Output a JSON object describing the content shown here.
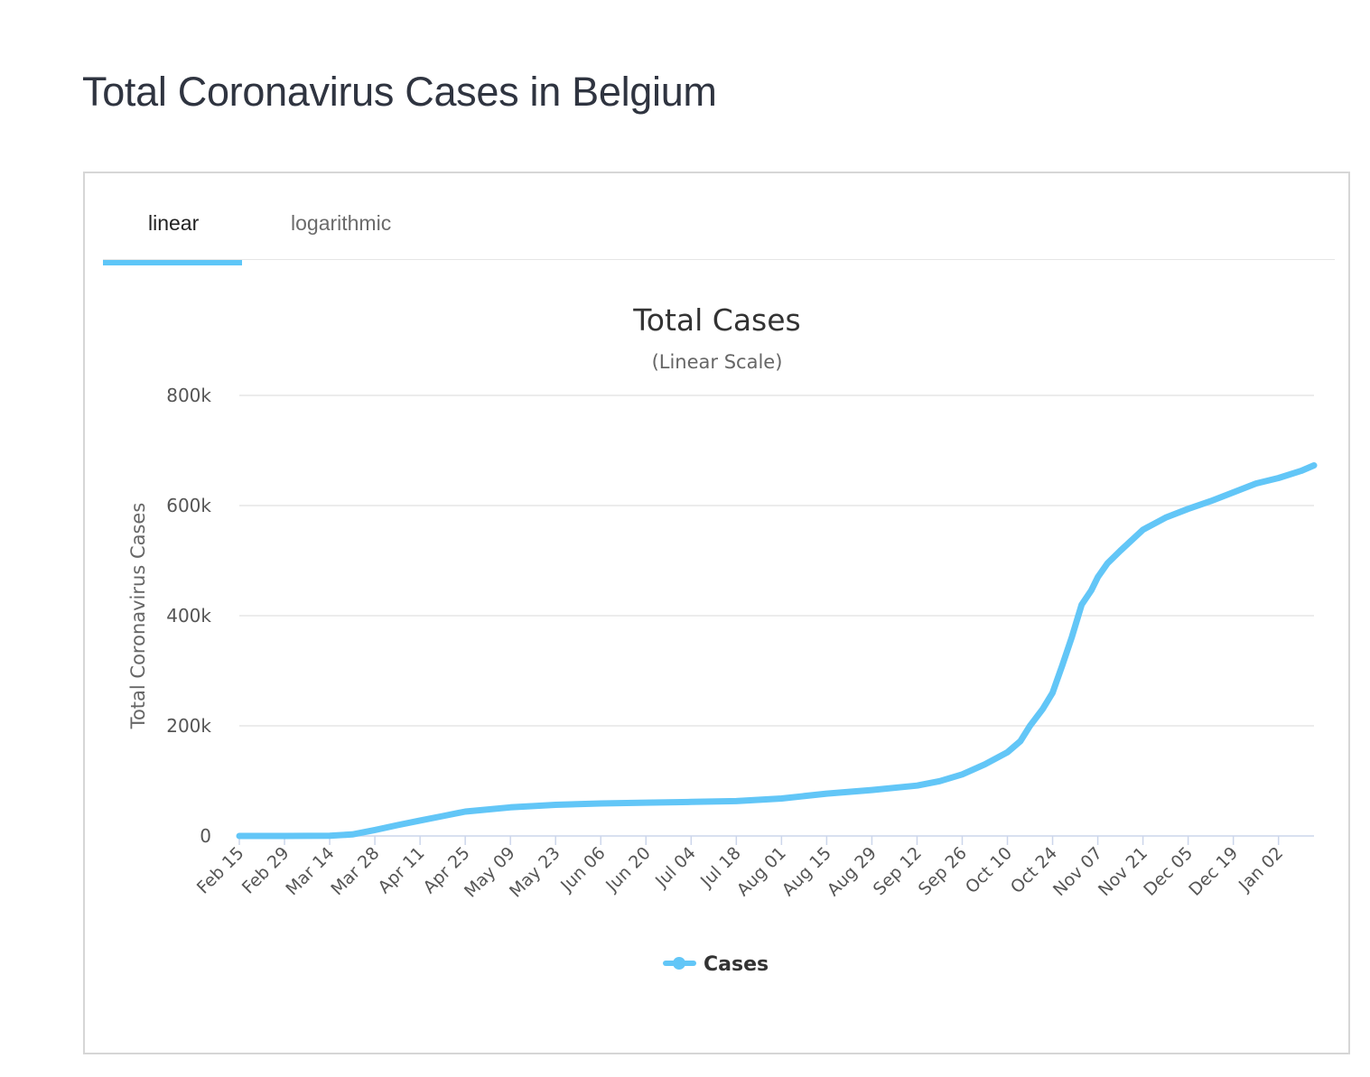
{
  "page": {
    "title": "Total Coronavirus Cases in Belgium"
  },
  "tabs": [
    {
      "label": "linear",
      "active": true
    },
    {
      "label": "logarithmic",
      "active": false
    }
  ],
  "colors": {
    "series": "#62c6f7",
    "accent": "#5ec6f8",
    "grid": "#e6e6e6",
    "title": "#2f3440"
  },
  "chart_data": {
    "type": "line",
    "title": "Total Cases",
    "subtitle": "(Linear Scale)",
    "xlabel": "",
    "ylabel": "Total Coronavirus Cases",
    "ylim": [
      0,
      800000
    ],
    "yticks": [
      0,
      200000,
      400000,
      600000,
      800000
    ],
    "ytick_labels": [
      "0",
      "200k",
      "400k",
      "600k",
      "800k"
    ],
    "xticks": [
      "Feb 15",
      "Feb 29",
      "Mar 14",
      "Mar 28",
      "Apr 11",
      "Apr 25",
      "May 09",
      "May 23",
      "Jun 06",
      "Jun 20",
      "Jul 04",
      "Jul 18",
      "Aug 01",
      "Aug 15",
      "Aug 29",
      "Sep 12",
      "Sep 26",
      "Oct 10",
      "Oct 24",
      "Nov 07",
      "Nov 21",
      "Dec 05",
      "Dec 19",
      "Jan 02"
    ],
    "grid": true,
    "legend": "bottom-center",
    "series": [
      {
        "name": "Cases",
        "x": [
          "Feb 15",
          "Feb 29",
          "Mar 14",
          "Mar 21",
          "Mar 28",
          "Apr 04",
          "Apr 11",
          "Apr 18",
          "Apr 25",
          "May 09",
          "May 23",
          "Jun 06",
          "Jun 20",
          "Jul 04",
          "Jul 18",
          "Aug 01",
          "Aug 15",
          "Aug 29",
          "Sep 12",
          "Sep 19",
          "Sep 26",
          "Oct 03",
          "Oct 10",
          "Oct 14",
          "Oct 17",
          "Oct 21",
          "Oct 24",
          "Oct 27",
          "Oct 30",
          "Nov 02",
          "Nov 05",
          "Nov 07",
          "Nov 10",
          "Nov 14",
          "Nov 21",
          "Nov 28",
          "Dec 05",
          "Dec 12",
          "Dec 19",
          "Dec 26",
          "Jan 02",
          "Jan 09",
          "Jan 13"
        ],
        "values": [
          1,
          1,
          559,
          2815,
          10836,
          19691,
          28018,
          36138,
          44293,
          52011,
          56511,
          59072,
          60550,
          61727,
          63238,
          68006,
          76897,
          83500,
          91500,
          99500,
          111800,
          130000,
          152000,
          172000,
          200000,
          231000,
          260000,
          310000,
          362000,
          420000,
          446000,
          470000,
          495000,
          518000,
          556000,
          578000,
          594000,
          608000,
          624000,
          640000,
          650000,
          663000,
          673000
        ]
      }
    ]
  }
}
